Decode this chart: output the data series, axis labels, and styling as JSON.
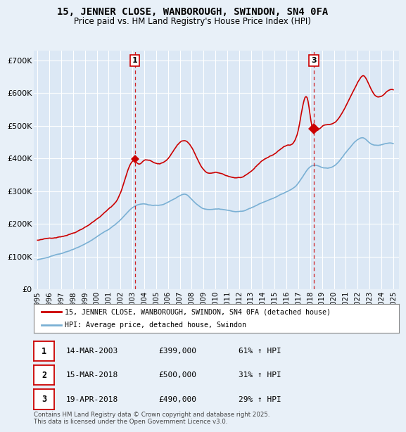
{
  "title": "15, JENNER CLOSE, WANBOROUGH, SWINDON, SN4 0FA",
  "subtitle": "Price paid vs. HM Land Registry's House Price Index (HPI)",
  "background_color": "#e8f0f8",
  "plot_bg_color": "#dce8f5",
  "ylim": [
    0,
    730000
  ],
  "yticks": [
    0,
    100000,
    200000,
    300000,
    400000,
    500000,
    600000,
    700000
  ],
  "ytick_labels": [
    "£0",
    "£100K",
    "£200K",
    "£300K",
    "£400K",
    "£500K",
    "£600K",
    "£700K"
  ],
  "xlim_start": 1994.7,
  "xlim_end": 2025.5,
  "xticks": [
    1995,
    1996,
    1997,
    1998,
    1999,
    2000,
    2001,
    2002,
    2003,
    2004,
    2005,
    2006,
    2007,
    2008,
    2009,
    2010,
    2011,
    2012,
    2013,
    2014,
    2015,
    2016,
    2017,
    2018,
    2019,
    2020,
    2021,
    2022,
    2023,
    2024,
    2025
  ],
  "sale1_x": 2003.2,
  "sale1_y": 399000,
  "sale1_label": "1",
  "sale2_x": 2018.2,
  "sale2_y": 500000,
  "sale2_label": "2",
  "sale3_x": 2018.3,
  "sale3_y": 490000,
  "sale3_label": "3",
  "sale_line_color": "#cc0000",
  "sale_marker_color": "#cc0000",
  "hpi_line_color": "#7ab0d4",
  "legend_entries": [
    "15, JENNER CLOSE, WANBOROUGH, SWINDON, SN4 0FA (detached house)",
    "HPI: Average price, detached house, Swindon"
  ],
  "table_rows": [
    [
      "1",
      "14-MAR-2003",
      "£399,000",
      "61% ↑ HPI"
    ],
    [
      "2",
      "15-MAR-2018",
      "£500,000",
      "31% ↑ HPI"
    ],
    [
      "3",
      "19-APR-2018",
      "£490,000",
      "29% ↑ HPI"
    ]
  ],
  "footnote": "Contains HM Land Registry data © Crown copyright and database right 2025.\nThis data is licensed under the Open Government Licence v3.0."
}
